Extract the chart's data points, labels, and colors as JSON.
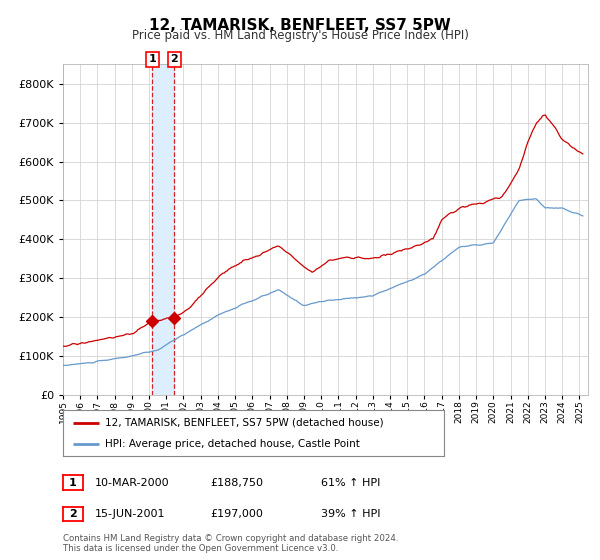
{
  "title": "12, TAMARISK, BENFLEET, SS7 5PW",
  "subtitle": "Price paid vs. HM Land Registry's House Price Index (HPI)",
  "legend_line1": "12, TAMARISK, BENFLEET, SS7 5PW (detached house)",
  "legend_line2": "HPI: Average price, detached house, Castle Point",
  "sale1_date": "10-MAR-2000",
  "sale1_price": "£188,750",
  "sale1_hpi": "61% ↑ HPI",
  "sale2_date": "15-JUN-2001",
  "sale2_price": "£197,000",
  "sale2_hpi": "39% ↑ HPI",
  "footer": "Contains HM Land Registry data © Crown copyright and database right 2024.\nThis data is licensed under the Open Government Licence v3.0.",
  "red_color": "#cc0000",
  "blue_color": "#6699cc",
  "highlight_color": "#ddeeff",
  "grid_color": "#cccccc",
  "background_color": "#ffffff",
  "ylim": [
    0,
    850000
  ],
  "yticks": [
    0,
    100000,
    200000,
    300000,
    400000,
    500000,
    600000,
    700000,
    800000
  ],
  "sale1_year": 2000.19,
  "sale2_year": 2001.46,
  "sale1_price_val": 188750,
  "sale2_price_val": 197000
}
